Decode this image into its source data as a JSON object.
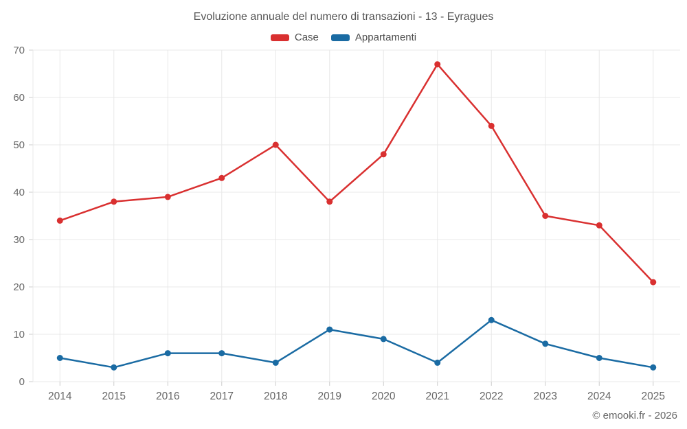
{
  "chart_data": {
    "type": "line",
    "title": "Evoluzione annuale del numero di transazioni - 13 - Eyragues",
    "categories": [
      "2014",
      "2015",
      "2016",
      "2017",
      "2018",
      "2019",
      "2020",
      "2021",
      "2022",
      "2023",
      "2024",
      "2025"
    ],
    "series": [
      {
        "name": "Case",
        "color": "#d93030",
        "values": [
          34,
          38,
          39,
          43,
          50,
          38,
          48,
          67,
          54,
          35,
          33,
          21
        ]
      },
      {
        "name": "Appartamenti",
        "color": "#1a6ba3",
        "values": [
          5,
          3,
          6,
          6,
          4,
          11,
          9,
          4,
          13,
          8,
          5,
          3
        ]
      }
    ],
    "xlabel": "",
    "ylabel": "",
    "ylim": [
      0,
      70
    ],
    "ytick_step": 10,
    "grid": true,
    "legend_position": "top",
    "grid_color": "#e8e8e8",
    "tick_color": "#cccccc",
    "axis_label_color": "#666666"
  },
  "footer": {
    "credit": "© emooki.fr - 2026"
  }
}
